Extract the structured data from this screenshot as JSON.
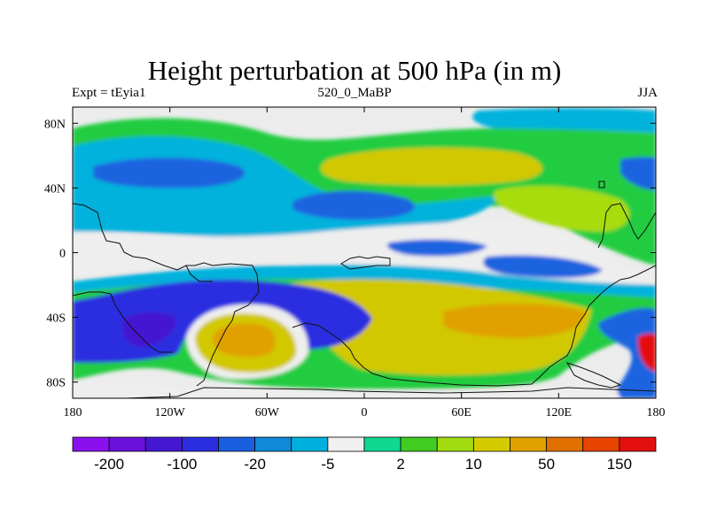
{
  "title": "Height perturbation at 500 hPa (in m)",
  "subtitle_left": "Expt = tEyia1",
  "subtitle_center": "520_0_MaBP",
  "subtitle_right": "JJA",
  "axes": {
    "y_ticks": [
      {
        "label": "80N",
        "lat": 80
      },
      {
        "label": "40N",
        "lat": 40
      },
      {
        "label": "0",
        "lat": 0
      },
      {
        "label": "40S",
        "lat": -40
      },
      {
        "label": "80S",
        "lat": -80
      }
    ],
    "x_ticks": [
      {
        "label": "180",
        "lon": -180
      },
      {
        "label": "120W",
        "lon": -120
      },
      {
        "label": "60W",
        "lon": -60
      },
      {
        "label": "0",
        "lon": 0
      },
      {
        "label": "60E",
        "lon": 60
      },
      {
        "label": "120E",
        "lon": 120
      },
      {
        "label": "180",
        "lon": 180
      }
    ]
  },
  "colorbar": {
    "colors": [
      "#8b10ee",
      "#6a10dc",
      "#4418d2",
      "#2a2ee0",
      "#1a5ee0",
      "#0e8ad8",
      "#00b0dc",
      "#f0f0f0",
      "#10d890",
      "#40cc20",
      "#a0dc10",
      "#d4cc00",
      "#e0a000",
      "#e07000",
      "#e84400",
      "#e41010"
    ],
    "labels": [
      {
        "text": "-200",
        "boundary": 1
      },
      {
        "text": "-100",
        "boundary": 3
      },
      {
        "text": "-20",
        "boundary": 5
      },
      {
        "text": "-5",
        "boundary": 7
      },
      {
        "text": "2",
        "boundary": 9
      },
      {
        "text": "10",
        "boundary": 11
      },
      {
        "text": "50",
        "boundary": 13
      },
      {
        "text": "150",
        "boundary": 15
      }
    ]
  },
  "colors": {
    "neutral": "#e8e8e8",
    "coast": "#111111"
  }
}
